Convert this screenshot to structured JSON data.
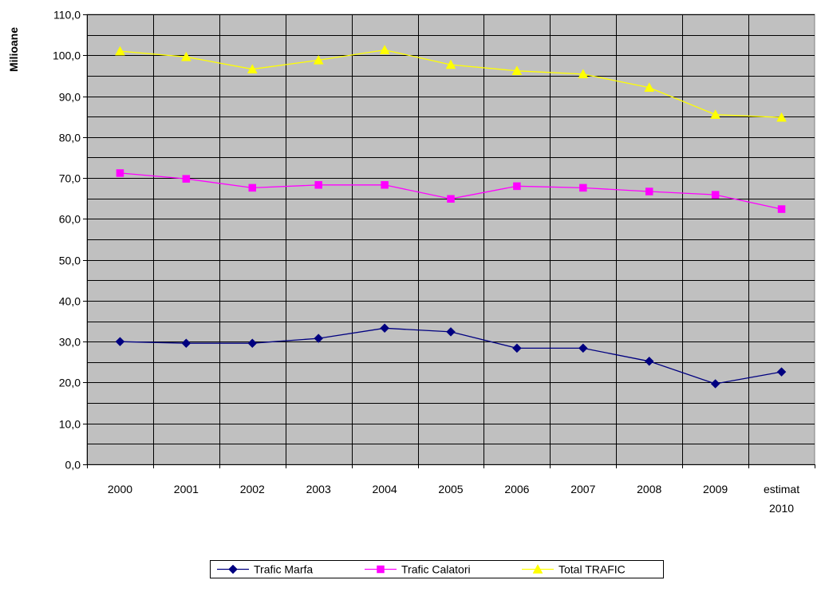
{
  "chart_data": {
    "type": "line",
    "title": "",
    "ylabel": "Milioane",
    "xlabel": "",
    "ylim": [
      0,
      110
    ],
    "ytick_step": 10,
    "ytick_labels": [
      "0,0",
      "10,0",
      "20,0",
      "30,0",
      "40,0",
      "50,0",
      "60,0",
      "70,0",
      "80,0",
      "90,0",
      "100,0",
      "110,0"
    ],
    "grid": true,
    "plot_background": "#c0c0c0",
    "legend_position": "bottom",
    "categories": [
      [
        "2000"
      ],
      [
        "2001"
      ],
      [
        "2002"
      ],
      [
        "2003"
      ],
      [
        "2004"
      ],
      [
        "2005"
      ],
      [
        "2006"
      ],
      [
        "2007"
      ],
      [
        "2008"
      ],
      [
        "2009"
      ],
      [
        "estimat",
        "2010"
      ]
    ],
    "series": [
      {
        "name": "Trafic Marfa",
        "color": "#000080",
        "marker": "diamond",
        "values": [
          30.0,
          29.6,
          29.6,
          30.8,
          33.3,
          32.4,
          28.4,
          28.4,
          25.2,
          19.7,
          22.6
        ]
      },
      {
        "name": "Trafic Calatori",
        "color": "#ff00ff",
        "marker": "square",
        "values": [
          71.2,
          69.8,
          67.6,
          68.3,
          68.3,
          64.9,
          68.0,
          67.6,
          66.7,
          65.9,
          62.4
        ]
      },
      {
        "name": "Total TRAFIC",
        "color": "#ffff00",
        "marker": "triangle",
        "values": [
          101.0,
          99.6,
          96.6,
          98.8,
          101.3,
          97.7,
          96.2,
          95.4,
          92.1,
          85.5,
          84.8
        ]
      }
    ]
  }
}
